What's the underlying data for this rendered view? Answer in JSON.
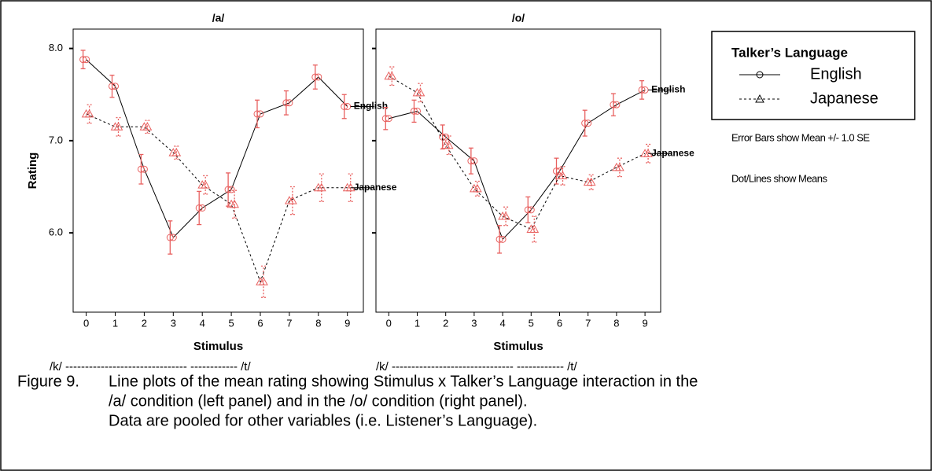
{
  "chart_data": [
    {
      "type": "line",
      "title": "/a/",
      "xlabel": "Stimulus",
      "ylabel": "Rating",
      "continuum": "/k/ ------------------------------- ------------ /t/",
      "x": [
        0,
        1,
        2,
        3,
        4,
        5,
        6,
        7,
        8,
        9
      ],
      "xticks": [
        0,
        1,
        2,
        3,
        4,
        5,
        6,
        7,
        8,
        9
      ],
      "xlim": [
        -0.45,
        9.55
      ],
      "ylim": [
        5.14,
        8.21
      ],
      "yticks": [
        {
          "value": 6,
          "label": "6.0"
        },
        {
          "value": 7,
          "label": "7.0"
        },
        {
          "value": 8,
          "label": "8.0"
        }
      ],
      "series": [
        {
          "name": "English",
          "color": "#000000",
          "marker_color": "#e8605f",
          "marker": "circle",
          "dash": "solid",
          "values": [
            7.88,
            7.59,
            6.69,
            5.95,
            6.27,
            6.47,
            7.29,
            7.41,
            7.69,
            7.37
          ],
          "errors": [
            0.1,
            0.12,
            0.16,
            0.18,
            0.18,
            0.18,
            0.15,
            0.13,
            0.13,
            0.13
          ]
        },
        {
          "name": "Japanese",
          "color": "#000000",
          "marker_color": "#e8605f",
          "marker": "triangle",
          "dash": "dotted",
          "values": [
            7.29,
            7.15,
            7.15,
            6.87,
            6.52,
            6.31,
            5.47,
            6.35,
            6.49,
            6.49
          ],
          "errors": [
            0.1,
            0.1,
            0.07,
            0.07,
            0.1,
            0.15,
            0.17,
            0.15,
            0.15,
            0.15
          ]
        }
      ]
    },
    {
      "type": "line",
      "title": "/o/",
      "xlabel": "Stimulus",
      "continuum": "/k/ ------------------------------- ------------ /t/",
      "x": [
        0,
        1,
        2,
        3,
        4,
        5,
        6,
        7,
        8,
        9
      ],
      "xticks": [
        0,
        1,
        2,
        3,
        4,
        5,
        6,
        7,
        8,
        9
      ],
      "xlim": [
        -0.45,
        9.55
      ],
      "ylim": [
        5.14,
        8.21
      ],
      "series": [
        {
          "name": "English",
          "color": "#000000",
          "marker_color": "#e8605f",
          "marker": "circle",
          "dash": "solid",
          "values": [
            7.24,
            7.32,
            7.04,
            6.78,
            5.93,
            6.25,
            6.67,
            7.19,
            7.39,
            7.55
          ],
          "errors": [
            0.12,
            0.12,
            0.13,
            0.14,
            0.15,
            0.14,
            0.14,
            0.14,
            0.12,
            0.1
          ]
        },
        {
          "name": "Japanese",
          "color": "#000000",
          "marker_color": "#e8605f",
          "marker": "triangle",
          "dash": "dotted",
          "values": [
            7.7,
            7.52,
            6.95,
            6.48,
            6.18,
            6.04,
            6.62,
            6.55,
            6.71,
            6.86
          ],
          "errors": [
            0.1,
            0.1,
            0.1,
            0.08,
            0.1,
            0.14,
            0.1,
            0.08,
            0.1,
            0.1
          ]
        }
      ]
    }
  ],
  "legend_title": "Talker’s Language",
  "notes": [
    "Error Bars show Mean +/- 1.0 SE",
    "Dot/Lines show Means"
  ],
  "caption": {
    "label": "Figure 9.",
    "lines": [
      "Line plots of the mean rating showing Stimulus x Talker’s Language interaction in the",
      "/a/ condition (left panel) and in the /o/ condition (right panel).",
      "Data are pooled for other variables (i.e. Listener’s Language)."
    ]
  }
}
